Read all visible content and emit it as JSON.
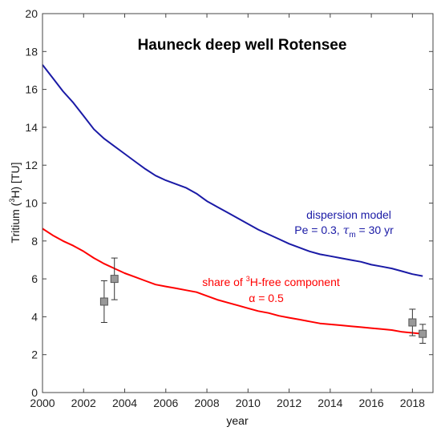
{
  "chart_data": {
    "type": "line",
    "title": "Hauneck deep well Rotensee",
    "xlabel": "year",
    "ylabel": "Tritium (³H) [TU]",
    "xlim": [
      2000,
      2019
    ],
    "ylim": [
      0,
      20
    ],
    "x_ticks": [
      2000,
      2002,
      2004,
      2006,
      2008,
      2010,
      2012,
      2014,
      2016,
      2018
    ],
    "y_ticks": [
      0,
      2,
      4,
      6,
      8,
      10,
      12,
      14,
      16,
      18,
      20
    ],
    "grid": false,
    "colors": {
      "dispersion": "#1a1aa6",
      "share": "#ff0000",
      "marker": "#999999",
      "errorbar": "#333333"
    },
    "series": [
      {
        "key": "dispersion",
        "x": [
          2000,
          2000.5,
          2001,
          2001.5,
          2002,
          2002.5,
          2003,
          2003.5,
          2004,
          2004.5,
          2005,
          2005.5,
          2006,
          2006.5,
          2007,
          2007.5,
          2008,
          2008.5,
          2009,
          2009.5,
          2010,
          2010.5,
          2011,
          2011.5,
          2012,
          2012.5,
          2013,
          2013.5,
          2014,
          2014.5,
          2015,
          2015.5,
          2016,
          2016.5,
          2017,
          2017.5,
          2018,
          2018.5
        ],
        "y": [
          17.3,
          16.6,
          15.9,
          15.3,
          14.6,
          13.9,
          13.4,
          13.0,
          12.6,
          12.2,
          11.8,
          11.45,
          11.2,
          11.0,
          10.8,
          10.5,
          10.1,
          9.8,
          9.5,
          9.2,
          8.9,
          8.6,
          8.35,
          8.1,
          7.85,
          7.65,
          7.45,
          7.3,
          7.2,
          7.1,
          7.0,
          6.9,
          6.75,
          6.65,
          6.55,
          6.4,
          6.25,
          6.15
        ]
      },
      {
        "key": "share",
        "x": [
          2000,
          2000.5,
          2001,
          2001.5,
          2002,
          2002.5,
          2003,
          2003.5,
          2004,
          2004.5,
          2005,
          2005.5,
          2006,
          2006.5,
          2007,
          2007.5,
          2008,
          2008.5,
          2009,
          2009.5,
          2010,
          2010.5,
          2011,
          2011.5,
          2012,
          2012.5,
          2013,
          2013.5,
          2014,
          2014.5,
          2015,
          2015.5,
          2016,
          2016.5,
          2017,
          2017.5,
          2018,
          2018.5
        ],
        "y": [
          8.65,
          8.3,
          8.0,
          7.75,
          7.45,
          7.1,
          6.8,
          6.55,
          6.3,
          6.1,
          5.9,
          5.7,
          5.6,
          5.5,
          5.4,
          5.3,
          5.1,
          4.9,
          4.75,
          4.6,
          4.45,
          4.3,
          4.2,
          4.05,
          3.95,
          3.85,
          3.75,
          3.65,
          3.6,
          3.55,
          3.5,
          3.45,
          3.4,
          3.35,
          3.3,
          3.2,
          3.15,
          3.1
        ]
      }
    ],
    "points": [
      {
        "x": 2003.0,
        "y": 4.8,
        "ylow": 3.7,
        "yhigh": 5.9
      },
      {
        "x": 2003.5,
        "y": 6.0,
        "ylow": 4.9,
        "yhigh": 7.1
      },
      {
        "x": 2018.0,
        "y": 3.7,
        "ylow": 3.0,
        "yhigh": 4.4
      },
      {
        "x": 2018.5,
        "y": 3.1,
        "ylow": 2.6,
        "yhigh": 3.6
      }
    ],
    "annotations": {
      "dispersion_line1": "dispersion model",
      "dispersion_line2_pre": "Pe = 0.3, ",
      "dispersion_tau": "τ",
      "dispersion_tau_sub": "m",
      "dispersion_line2_post": " = 30 yr",
      "share_pre": "share of ",
      "share_sup": "3",
      "share_post": "H-free component",
      "share_line2": "α = 0.5"
    },
    "ylabel_parts": {
      "pre": "Tritium (",
      "sup": "3",
      "post": "H) [TU]"
    }
  }
}
